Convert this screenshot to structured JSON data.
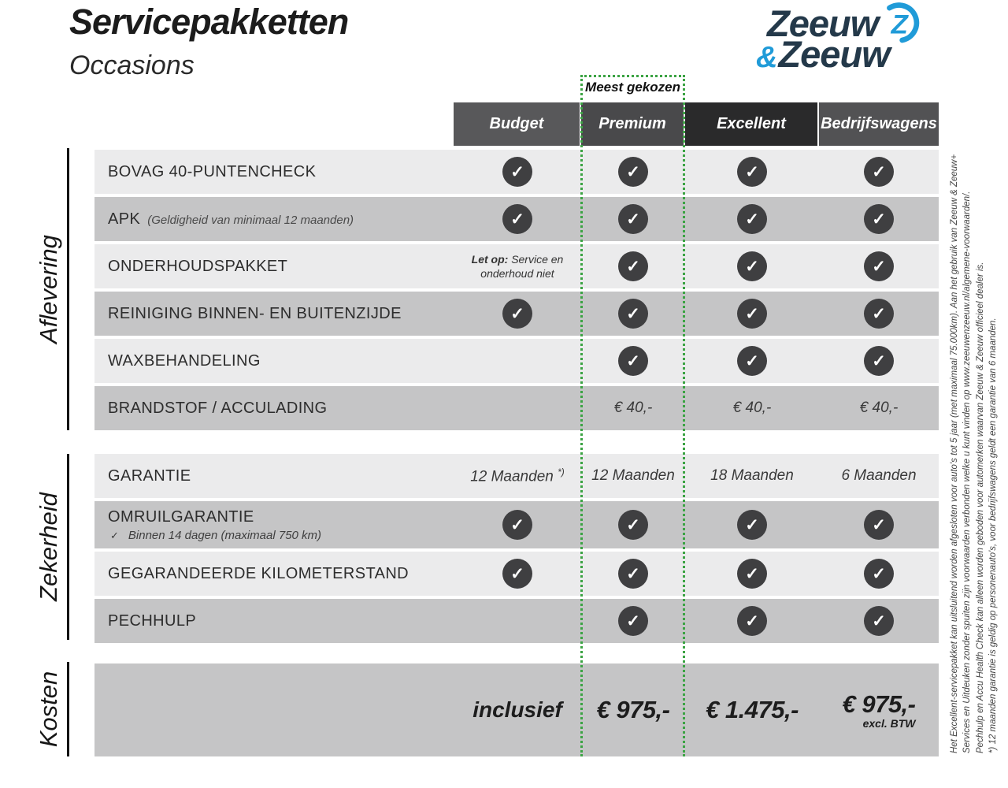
{
  "header": {
    "title": "Servicepakketten",
    "subtitle": "Occasions",
    "most_chosen_label": "Meest gekozen",
    "columns": [
      {
        "label": "Budget",
        "color": "#58585a"
      },
      {
        "label": "Premium",
        "color": "#49494b"
      },
      {
        "label": "Excellent",
        "color": "#2a2a2b"
      },
      {
        "label": "Bedrijfswagens",
        "color": "#525254"
      }
    ]
  },
  "logo": {
    "line1": "Zeeuw",
    "amp": "&",
    "line2": "Zeeuw",
    "navy": "#24394a",
    "blue": "#209bd8"
  },
  "icons": {
    "check": "✓"
  },
  "colors": {
    "row_light": "#ebebec",
    "row_dark": "#c5c5c6",
    "check_circle": "#3f3f41",
    "highlight_green": "#3ba343"
  },
  "sections": [
    {
      "label": "Aflevering",
      "rows": [
        {
          "label": "BOVAG 40-PUNTENCHECK",
          "cells": [
            {
              "type": "check"
            },
            {
              "type": "check"
            },
            {
              "type": "check"
            },
            {
              "type": "check"
            }
          ]
        },
        {
          "label": "APK",
          "note": "(Geldigheid van minimaal 12 maanden)",
          "cells": [
            {
              "type": "check"
            },
            {
              "type": "check"
            },
            {
              "type": "check"
            },
            {
              "type": "check"
            }
          ]
        },
        {
          "label": "ONDERHOUDSPAKKET",
          "cells": [
            {
              "type": "note",
              "bold": "Let op:",
              "line1": "Service en",
              "line2": "onderhoud niet"
            },
            {
              "type": "check"
            },
            {
              "type": "check"
            },
            {
              "type": "check"
            }
          ]
        },
        {
          "label": "REINIGING BINNEN- EN BUITENZIJDE",
          "cells": [
            {
              "type": "check"
            },
            {
              "type": "check"
            },
            {
              "type": "check"
            },
            {
              "type": "check"
            }
          ]
        },
        {
          "label": "WAXBEHANDELING",
          "cells": [
            {
              "type": "empty"
            },
            {
              "type": "check"
            },
            {
              "type": "check"
            },
            {
              "type": "check"
            }
          ]
        },
        {
          "label": "BRANDSTOF / ACCULADING",
          "cells": [
            {
              "type": "empty"
            },
            {
              "type": "text",
              "text": "€ 40,-"
            },
            {
              "type": "text",
              "text": "€ 40,-"
            },
            {
              "type": "text",
              "text": "€ 40,-"
            }
          ]
        }
      ]
    },
    {
      "label": "Zekerheid",
      "rows": [
        {
          "label": "GARANTIE",
          "cells": [
            {
              "type": "text",
              "text": "12 Maanden",
              "sup": "*)"
            },
            {
              "type": "text",
              "text": "12 Maanden"
            },
            {
              "type": "text",
              "text": "18 Maanden"
            },
            {
              "type": "text",
              "text": "6 Maanden"
            }
          ]
        },
        {
          "label": "OMRUILGARANTIE",
          "sub_check": "✓",
          "sub": "Binnen 14 dagen (maximaal 750 km)",
          "cells": [
            {
              "type": "check"
            },
            {
              "type": "check"
            },
            {
              "type": "check"
            },
            {
              "type": "check"
            }
          ]
        },
        {
          "label": "GEGARANDEERDE KILOMETERSTAND",
          "cells": [
            {
              "type": "check"
            },
            {
              "type": "check"
            },
            {
              "type": "check"
            },
            {
              "type": "check"
            }
          ]
        },
        {
          "label": "PECHHULP",
          "cells": [
            {
              "type": "empty"
            },
            {
              "type": "check"
            },
            {
              "type": "check"
            },
            {
              "type": "check"
            }
          ]
        }
      ]
    },
    {
      "label": "Kosten",
      "rows": [
        {
          "label": "",
          "cells": [
            {
              "type": "label",
              "text": "inclusief"
            },
            {
              "type": "price",
              "text": "€ 975,-"
            },
            {
              "type": "price",
              "text": "€ 1.475,-"
            },
            {
              "type": "price",
              "text": "€ 975,-",
              "sub": "excl. BTW"
            }
          ]
        }
      ]
    }
  ],
  "footnotes": [
    "Het Excellent-servicepakket kan uitsluitend worden afgesloten voor auto's tot 5 jaar (met maximaal 75.000km). Aan het gebruik van Zeeuw & Zeeuw+",
    "Services en Uitdeuken zonder spuiten zijn voorwaarden verbonden welke u kunt vinden op www.zeeuwenzeeuw.nl/algemene-voorwaarden/.",
    "Pechhulp en Accu Health Check kan alleen worden geboden voor automerken waarvan Zeeuw & Zeeuw officieel dealer is.",
    "*) 12 maanden garantie is geldig op personenauto's, voor bedrijfswagens geldt een garantie van 6 maanden."
  ]
}
